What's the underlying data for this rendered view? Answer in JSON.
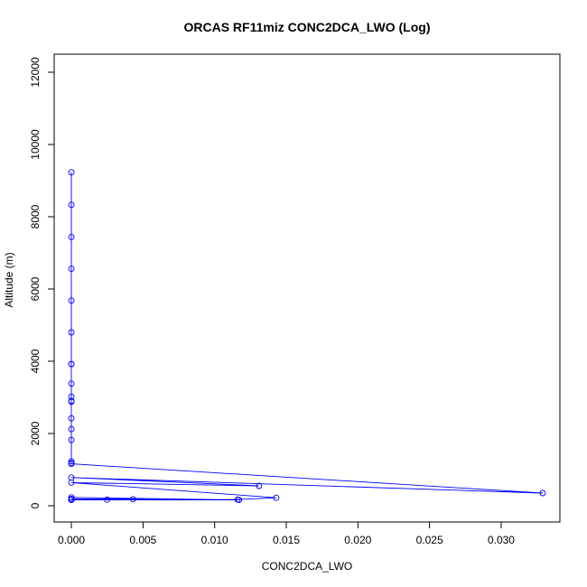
{
  "chart_data": {
    "type": "scatter",
    "title": "ORCAS RF11miz CONC2DCA_LWO (Log)",
    "xlabel": "CONC2DCA_LWO",
    "ylabel": "Altitude (m)",
    "xlim": [
      -0.0012,
      0.0341
    ],
    "ylim": [
      -450,
      12500
    ],
    "xticks": [
      0,
      0.005,
      0.01,
      0.015,
      0.02,
      0.025,
      0.03
    ],
    "xtick_labels": [
      "0.000",
      "0.005",
      "0.010",
      "0.015",
      "0.020",
      "0.025",
      "0.030"
    ],
    "yticks": [
      0,
      2000,
      4000,
      6000,
      8000,
      10000,
      12000
    ],
    "ytick_labels": [
      "0",
      "2000",
      "4000",
      "6000",
      "8000",
      "10000",
      "12000"
    ],
    "grid": false,
    "legend": "none",
    "colors": {
      "series": "#0000ff",
      "axis": "#000000"
    },
    "series": [
      {
        "style": "line+markers",
        "x": [
          0,
          0,
          0,
          0,
          0,
          0,
          0,
          0,
          0,
          0,
          0,
          0,
          0,
          0,
          0,
          0,
          0,
          0,
          0.0329,
          0,
          0.0131,
          0,
          0.0143,
          0.0116,
          0,
          0.0043,
          0,
          0.0025,
          0,
          0.0117,
          0
        ],
        "y": [
          9230,
          8330,
          7440,
          6560,
          5680,
          4800,
          3920,
          3920,
          3380,
          3020,
          2900,
          2880,
          2420,
          2120,
          1820,
          1230,
          1180,
          1160,
          350,
          780,
          550,
          640,
          220,
          170,
          190,
          180,
          170,
          170,
          160,
          160,
          230
        ]
      }
    ]
  }
}
